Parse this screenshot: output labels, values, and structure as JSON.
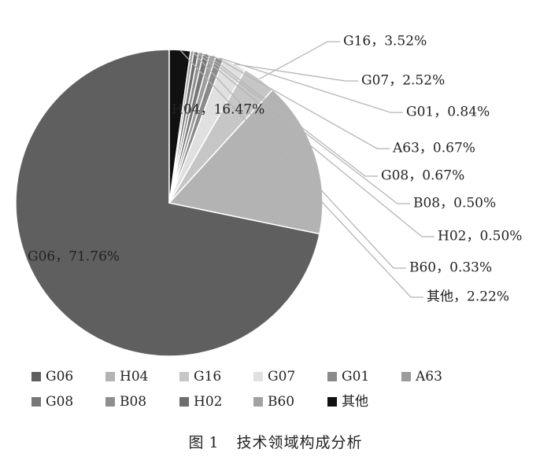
{
  "chart_data": {
    "type": "pie",
    "title": "",
    "categories": [
      "G06",
      "H04",
      "G16",
      "G07",
      "G01",
      "A63",
      "G08",
      "B08",
      "H02",
      "B60",
      "其他"
    ],
    "values": [
      71.76,
      16.47,
      3.52,
      2.52,
      0.84,
      0.67,
      0.67,
      0.5,
      0.5,
      0.33,
      2.22
    ],
    "data_labels": [
      "G06，71.76%",
      "H04，16.47%",
      "G16，3.52%",
      "G07，2.52%",
      "G01，0.84%",
      "A63，0.67%",
      "G08，0.67%",
      "B08，0.50%",
      "H02，0.50%",
      "B60，0.33%",
      "其他，2.22%"
    ],
    "colors": [
      "#5f5f5f",
      "#b3b3b3",
      "#c6c6c6",
      "#e0e0e0",
      "#8a8a8a",
      "#9c9c9c",
      "#777777",
      "#8f8f8f",
      "#6e6e6e",
      "#a2a2a2",
      "#111111"
    ],
    "legend_position": "bottom"
  },
  "caption": {
    "figure_label": "图",
    "figure_number": "1",
    "text": "技术领域构成分析"
  }
}
